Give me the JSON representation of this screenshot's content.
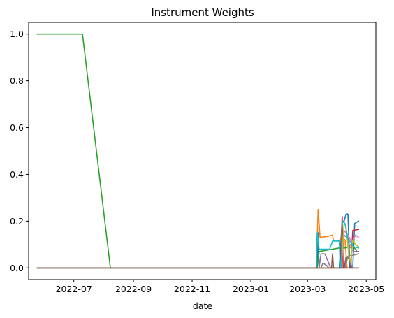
{
  "chart_data": {
    "type": "line",
    "title": "Instrument Weights",
    "xlabel": "date",
    "ylabel": "",
    "xlim": [
      "2022-05-15",
      "2023-05-11"
    ],
    "ylim": [
      -0.05,
      1.05
    ],
    "x_ticks": [
      "2022-07",
      "2022-09",
      "2022-11",
      "2023-01",
      "2023-03",
      "2023-05"
    ],
    "y_ticks": [
      0.0,
      0.2,
      0.4,
      0.6,
      0.8,
      1.0
    ],
    "y_tick_labels": [
      "0.0",
      "0.2",
      "0.4",
      "0.6",
      "0.8",
      "1.0"
    ],
    "grid": false,
    "series": [
      {
        "color": "#1f77b4",
        "points": [
          [
            "2022-05-24",
            0
          ],
          [
            "2023-03-11",
            0
          ],
          [
            "2023-03-12",
            0.15
          ],
          [
            "2023-03-13",
            0
          ],
          [
            "2023-04-03",
            0
          ],
          [
            "2023-04-06",
            0.2
          ],
          [
            "2023-04-08",
            0.2
          ],
          [
            "2023-04-10",
            0.23
          ],
          [
            "2023-04-12",
            0.23
          ],
          [
            "2023-04-14",
            0.0
          ],
          [
            "2023-04-17",
            0.0
          ],
          [
            "2023-04-19",
            0.19
          ],
          [
            "2023-04-23",
            0.2
          ]
        ]
      },
      {
        "color": "#ff7f0e",
        "points": [
          [
            "2022-05-24",
            0
          ],
          [
            "2023-03-10",
            0
          ],
          [
            "2023-03-12",
            0.25
          ],
          [
            "2023-03-14",
            0.13
          ],
          [
            "2023-03-22",
            0.135
          ],
          [
            "2023-03-27",
            0.14
          ],
          [
            "2023-03-28",
            0.115
          ],
          [
            "2023-04-03",
            0.115
          ],
          [
            "2023-04-05",
            0.13
          ],
          [
            "2023-04-09",
            0.12
          ],
          [
            "2023-04-11",
            0.0
          ]
        ]
      },
      {
        "color": "#2ca02c",
        "points": [
          [
            "2022-05-24",
            1.0
          ],
          [
            "2022-07-10",
            1.0
          ],
          [
            "2022-08-08",
            0.0
          ],
          [
            "2023-03-11",
            0
          ],
          [
            "2023-03-13",
            0.07
          ],
          [
            "2023-03-20",
            0.075
          ],
          [
            "2023-03-27",
            0.08
          ],
          [
            "2023-04-03",
            0.085
          ],
          [
            "2023-04-10",
            0.085
          ],
          [
            "2023-04-15",
            0.1
          ],
          [
            "2023-04-21",
            0.075
          ]
        ]
      },
      {
        "color": "#d62728",
        "points": [
          [
            "2022-05-24",
            0
          ],
          [
            "2023-04-04",
            0
          ],
          [
            "2023-04-06",
            0.22
          ],
          [
            "2023-04-07",
            0.0
          ],
          [
            "2023-04-15",
            0.0
          ],
          [
            "2023-04-17",
            0.16
          ],
          [
            "2023-04-23",
            0.165
          ]
        ]
      },
      {
        "color": "#9467bd",
        "points": [
          [
            "2022-05-24",
            0
          ],
          [
            "2023-03-13",
            0
          ],
          [
            "2023-03-15",
            0.06
          ],
          [
            "2023-03-19",
            0.06
          ],
          [
            "2023-03-22",
            0.03
          ],
          [
            "2023-03-25",
            0.0
          ],
          [
            "2023-04-05",
            0.0
          ],
          [
            "2023-04-08",
            0.14
          ],
          [
            "2023-04-11",
            0.13
          ],
          [
            "2023-04-14",
            0.09
          ],
          [
            "2023-04-18",
            0.07
          ],
          [
            "2023-04-23",
            0.07
          ]
        ]
      },
      {
        "color": "#8c564b",
        "points": [
          [
            "2022-05-24",
            0
          ],
          [
            "2023-03-26",
            0
          ],
          [
            "2023-03-27",
            0.06
          ],
          [
            "2023-03-28",
            0.0
          ],
          [
            "2023-04-08",
            0.0
          ],
          [
            "2023-04-10",
            0.045
          ],
          [
            "2023-04-14",
            0.04
          ],
          [
            "2023-04-16",
            0.0
          ],
          [
            "2023-04-23",
            0.0
          ]
        ]
      },
      {
        "color": "#e377c2",
        "points": [
          [
            "2022-05-24",
            0
          ],
          [
            "2023-04-05",
            0
          ],
          [
            "2023-04-08",
            0.16
          ],
          [
            "2023-04-12",
            0.14
          ],
          [
            "2023-04-16",
            0.11
          ],
          [
            "2023-04-20",
            0.14
          ],
          [
            "2023-04-23",
            0.13
          ]
        ]
      },
      {
        "color": "#7f7f7f",
        "points": [
          [
            "2022-05-24",
            0
          ],
          [
            "2023-03-15",
            0
          ],
          [
            "2023-03-17",
            0.02
          ],
          [
            "2023-03-21",
            0.01
          ],
          [
            "2023-03-23",
            0.0
          ],
          [
            "2023-04-09",
            0.0
          ],
          [
            "2023-04-12",
            0.05
          ],
          [
            "2023-04-18",
            0.055
          ],
          [
            "2023-04-23",
            0.06
          ]
        ]
      },
      {
        "color": "#bcbd22",
        "points": [
          [
            "2022-05-24",
            0
          ],
          [
            "2023-04-05",
            0
          ],
          [
            "2023-04-08",
            0.19
          ],
          [
            "2023-04-10",
            0.18
          ],
          [
            "2023-04-13",
            0.05
          ],
          [
            "2023-04-15",
            0.02
          ],
          [
            "2023-04-17",
            0.12
          ],
          [
            "2023-04-20",
            0.1
          ],
          [
            "2023-04-23",
            0.09
          ]
        ]
      },
      {
        "color": "#17becf",
        "points": [
          [
            "2022-05-24",
            0
          ],
          [
            "2023-03-10",
            0
          ],
          [
            "2023-03-11",
            0.15
          ],
          [
            "2023-03-13",
            0.08
          ],
          [
            "2023-03-20",
            0.08
          ],
          [
            "2023-03-24",
            0.08
          ],
          [
            "2023-03-27",
            0.115
          ],
          [
            "2023-04-03",
            0.115
          ],
          [
            "2023-04-04",
            0.0
          ],
          [
            "2023-04-05",
            0.0
          ],
          [
            "2023-04-06",
            0.2
          ],
          [
            "2023-04-09",
            0.19
          ],
          [
            "2023-04-12",
            0.12
          ],
          [
            "2023-04-15",
            0.11
          ],
          [
            "2023-04-18",
            0.09
          ],
          [
            "2023-04-23",
            0.085
          ]
        ]
      },
      {
        "color": "#8c564b",
        "points": [
          [
            "2022-05-24",
            0
          ],
          [
            "2023-04-23",
            0
          ]
        ]
      }
    ]
  }
}
